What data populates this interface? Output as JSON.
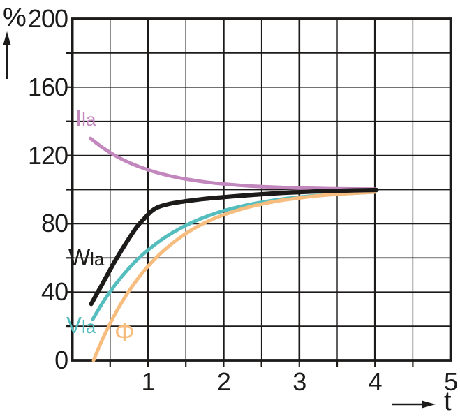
{
  "figure": {
    "title": "",
    "y_axis_unit": "%",
    "x_axis_label": "t"
  },
  "chart_data": {
    "type": "line",
    "title": "",
    "xlabel": "t",
    "ylabel": "%",
    "xlim": [
      0,
      5
    ],
    "ylim": [
      0,
      200
    ],
    "x_tick_values": [
      1,
      2,
      3,
      4,
      5
    ],
    "x_tick_labels": [
      "1",
      "2",
      "3",
      "4",
      "5"
    ],
    "y_tick_values": [
      0,
      40,
      80,
      120,
      160,
      200
    ],
    "y_tick_labels": [
      "0",
      "40",
      "80",
      "120",
      "160",
      "200"
    ],
    "grid": {
      "visible": true,
      "x_step": 0.5,
      "y_step": 20,
      "x_major_step": 1
    },
    "legend_position": "inline-curve-labels",
    "ink_color": "#1d1b1a",
    "series": [
      {
        "name": "Ila",
        "label_main": "I",
        "label_sub": "la",
        "color": "#c287bc",
        "stroke_width": 5,
        "z": 3,
        "points": [
          [
            0.24,
            130
          ],
          [
            0.4,
            124.6
          ],
          [
            0.6,
            119.1
          ],
          [
            0.8,
            114.9
          ],
          [
            1.0,
            111.6
          ],
          [
            1.2,
            109.0
          ],
          [
            1.4,
            107.0
          ],
          [
            1.6,
            105.5
          ],
          [
            1.8,
            104.2
          ],
          [
            2.0,
            103.3
          ],
          [
            2.25,
            102.4
          ],
          [
            2.5,
            101.8
          ],
          [
            2.75,
            101.3
          ],
          [
            3.0,
            100.9
          ],
          [
            3.25,
            100.7
          ],
          [
            3.5,
            100.5
          ],
          [
            3.75,
            100.4
          ],
          [
            4.0,
            100.3
          ]
        ]
      },
      {
        "name": "Wla",
        "label_main": "W",
        "label_sub": "la",
        "color": "#1d1b1a",
        "stroke_width": 6.2,
        "z": 4,
        "points": [
          [
            0.25,
            33
          ],
          [
            0.4,
            45
          ],
          [
            0.55,
            57
          ],
          [
            0.7,
            68
          ],
          [
            0.85,
            78
          ],
          [
            0.95,
            83
          ],
          [
            1.05,
            87.5
          ],
          [
            1.15,
            90
          ],
          [
            1.3,
            91.8
          ],
          [
            1.5,
            93.2
          ],
          [
            1.75,
            94.6
          ],
          [
            2.0,
            95.6
          ],
          [
            2.25,
            96.5
          ],
          [
            2.5,
            97.3
          ],
          [
            2.75,
            98.0
          ],
          [
            3.0,
            98.5
          ],
          [
            3.25,
            99.0
          ],
          [
            3.5,
            99.3
          ],
          [
            3.75,
            99.6
          ],
          [
            4.02,
            99.8
          ]
        ]
      },
      {
        "name": "Vla",
        "label_main": "V",
        "label_sub": "la",
        "color": "#55bdbd",
        "stroke_width": 5,
        "z": 1,
        "points": [
          [
            0.27,
            24
          ],
          [
            0.4,
            33.7
          ],
          [
            0.55,
            43.3
          ],
          [
            0.7,
            51.5
          ],
          [
            0.85,
            58.6
          ],
          [
            1.0,
            64.6
          ],
          [
            1.2,
            71.3
          ],
          [
            1.4,
            76.7
          ],
          [
            1.6,
            81.1
          ],
          [
            1.8,
            84.7
          ],
          [
            2.0,
            87.6
          ],
          [
            2.25,
            90.4
          ],
          [
            2.5,
            92.6
          ],
          [
            2.75,
            94.3
          ],
          [
            3.0,
            95.6
          ],
          [
            3.25,
            96.6
          ],
          [
            3.5,
            97.4
          ],
          [
            3.75,
            98.0
          ],
          [
            4.0,
            98.6
          ]
        ]
      },
      {
        "name": "Φ",
        "label_main": "Φ",
        "label_sub": "",
        "color": "#f7bd7e",
        "stroke_width": 5,
        "z": 2,
        "points": [
          [
            0.28,
            0
          ],
          [
            0.4,
            12.5
          ],
          [
            0.55,
            25.9
          ],
          [
            0.7,
            37.3
          ],
          [
            0.85,
            46.9
          ],
          [
            1.0,
            55.1
          ],
          [
            1.2,
            64.0
          ],
          [
            1.4,
            71.2
          ],
          [
            1.6,
            77.0
          ],
          [
            1.8,
            81.6
          ],
          [
            2.0,
            85.2
          ],
          [
            2.25,
            88.8
          ],
          [
            2.5,
            91.5
          ],
          [
            2.75,
            93.6
          ],
          [
            3.0,
            95.1
          ],
          [
            3.25,
            96.4
          ],
          [
            3.5,
            97.3
          ],
          [
            3.75,
            98.0
          ],
          [
            4.0,
            98.6
          ]
        ]
      }
    ]
  }
}
